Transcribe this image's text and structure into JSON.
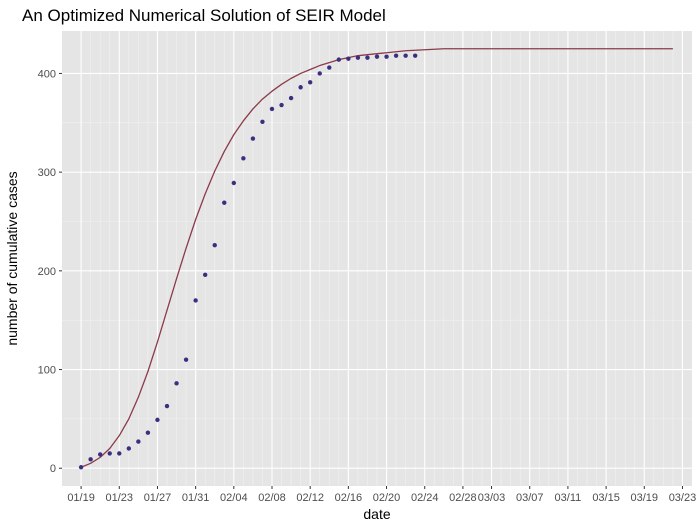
{
  "chart_data": {
    "type": "scatter+line",
    "title": "An Optimized Numerical Solution of SEIR Model",
    "xlabel": "date",
    "ylabel": "number of cumulative cases",
    "x_start": "01/19",
    "xlim": [
      "01/17",
      "03/24"
    ],
    "ylim": [
      -18,
      443
    ],
    "y_ticks": [
      0,
      100,
      200,
      300,
      400
    ],
    "x_ticks": [
      "01/19",
      "01/23",
      "01/27",
      "01/31",
      "02/04",
      "02/08",
      "02/12",
      "02/16",
      "02/20",
      "02/24",
      "02/28",
      "03/03",
      "03/07",
      "03/11",
      "03/15",
      "03/19",
      "03/23"
    ],
    "grid": true,
    "colors": {
      "panel": "#e5e5e5",
      "grid_major": "#ffffff",
      "points": "#3b2f7f",
      "line": "#8b3a4a"
    },
    "series": [
      {
        "kind": "points",
        "x": [
          "01/19",
          "01/20",
          "01/21",
          "01/22",
          "01/23",
          "01/24",
          "01/25",
          "01/26",
          "01/27",
          "01/28",
          "01/29",
          "01/30",
          "01/31",
          "02/01",
          "02/02",
          "02/03",
          "02/04",
          "02/05",
          "02/06",
          "02/07",
          "02/08",
          "02/09",
          "02/10",
          "02/11",
          "02/12",
          "02/13",
          "02/14",
          "02/15",
          "02/16",
          "02/17",
          "02/18",
          "02/19",
          "02/20",
          "02/21",
          "02/22",
          "02/23"
        ],
        "y": [
          1,
          9,
          14,
          15,
          15,
          20,
          27,
          36,
          49,
          63,
          86,
          110,
          170,
          196,
          226,
          269,
          289,
          314,
          334,
          351,
          364,
          368,
          375,
          386,
          391,
          400,
          406,
          414,
          415,
          416,
          416,
          417,
          417,
          418,
          418,
          418
        ]
      },
      {
        "kind": "line",
        "x": [
          "01/19",
          "01/20",
          "01/21",
          "01/22",
          "01/23",
          "01/24",
          "01/25",
          "01/26",
          "01/27",
          "01/28",
          "01/29",
          "01/30",
          "01/31",
          "02/01",
          "02/02",
          "02/03",
          "02/04",
          "02/05",
          "02/06",
          "02/07",
          "02/08",
          "02/09",
          "02/10",
          "02/11",
          "02/12",
          "02/13",
          "02/14",
          "02/15",
          "02/16",
          "02/17",
          "02/18",
          "02/19",
          "02/20",
          "02/22",
          "02/24",
          "02/26",
          "02/28",
          "03/03",
          "03/08",
          "03/13",
          "03/18",
          "03/22"
        ],
        "y": [
          1,
          5,
          11,
          20,
          33,
          50,
          72,
          98,
          128,
          160,
          192,
          223,
          252,
          278,
          301,
          321,
          338,
          352,
          364,
          374,
          382,
          389,
          395,
          400,
          404,
          408,
          411,
          414,
          416,
          418,
          419,
          420,
          421,
          423,
          424,
          425,
          425,
          425,
          425,
          425,
          425,
          425
        ]
      }
    ]
  }
}
